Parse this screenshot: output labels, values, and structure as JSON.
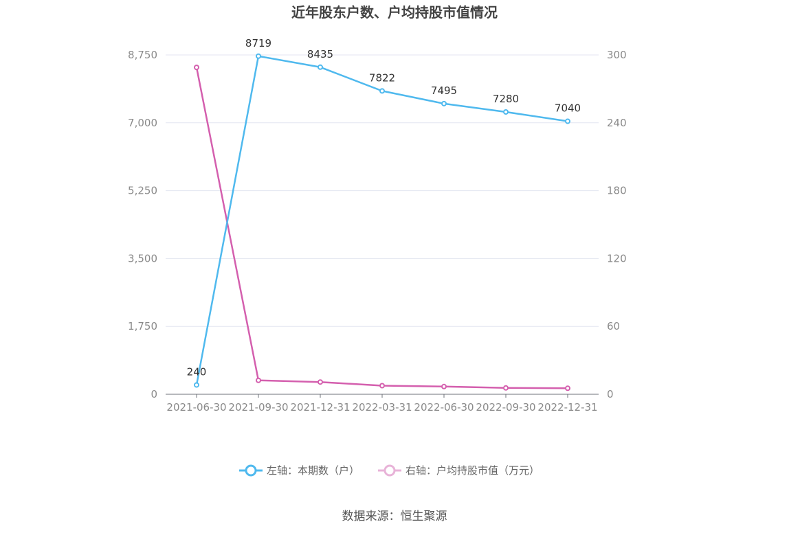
{
  "chart_data": {
    "type": "line",
    "title": "近年股东户数、户均持股市值情况",
    "categories": [
      "2021-06-30",
      "2021-09-30",
      "2021-12-31",
      "2022-03-31",
      "2022-06-30",
      "2022-09-30",
      "2022-12-31"
    ],
    "left_axis": {
      "ticks": [
        "0",
        "1,750",
        "3,500",
        "5,250",
        "7,000",
        "8,750"
      ],
      "ylim": [
        0,
        8750
      ]
    },
    "right_axis": {
      "ticks": [
        "0",
        "60",
        "120",
        "180",
        "240",
        "300"
      ],
      "ylim": [
        0,
        300
      ]
    },
    "grid": true,
    "legend_position": "bottom",
    "series": [
      {
        "name": "左轴：本期数（户）",
        "axis": "left",
        "color": "#4fb9ee",
        "values": [
          240,
          8719,
          8435,
          7822,
          7495,
          7280,
          7040
        ],
        "labels": [
          "240",
          "8719",
          "8435",
          "7822",
          "7495",
          "7280",
          "7040"
        ]
      },
      {
        "name": "右轴：户均持股市值（万元）",
        "axis": "right",
        "color": "#d45fae",
        "values": [
          289,
          12.3,
          10.8,
          7.6,
          6.8,
          5.6,
          5.3
        ]
      }
    ],
    "source": "数据来源：恒生聚源"
  }
}
